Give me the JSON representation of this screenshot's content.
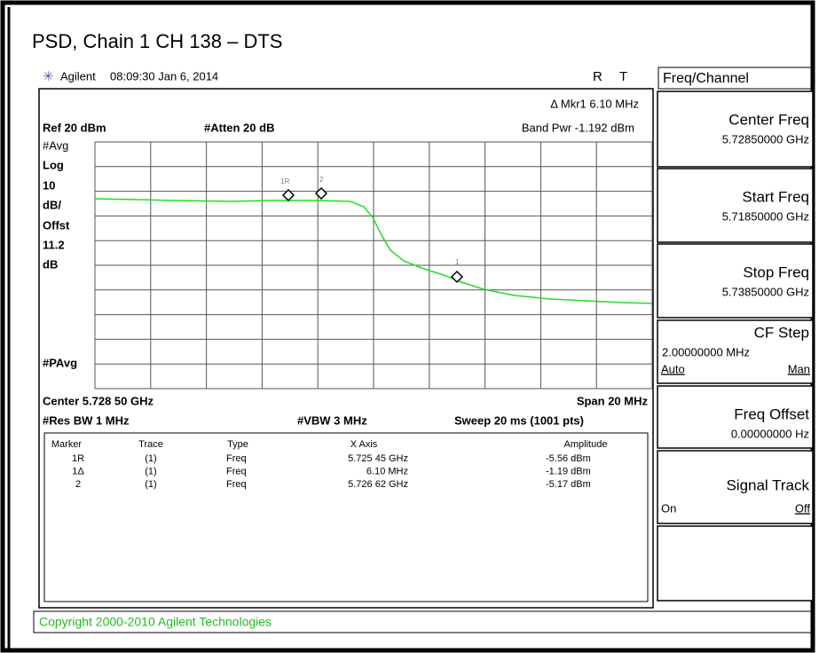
{
  "title": "PSD, Chain 1 CH 138 – DTS",
  "header": {
    "brand": "Agilent",
    "timestamp": "08:09:30 Jan 6, 2014",
    "flags": [
      "R",
      "T"
    ]
  },
  "screen": {
    "marker_readout": "Δ Mkr1  6.10 MHz",
    "ref": "Ref 20 dBm",
    "atten": "#Atten 20 dB",
    "band_power": "Band Pwr  -1.192 dBm",
    "left_labels": [
      "#Avg",
      "Log",
      "10",
      "dB/",
      "Offst",
      "11.2",
      "dB",
      "#PAvg"
    ],
    "plot_markers": [
      "1R",
      "2",
      "1"
    ],
    "center": "Center 5.728 50 GHz",
    "span": "Span 20 MHz",
    "res_bw": "#Res BW 1 MHz",
    "vbw": "#VBW 3 MHz",
    "sweep": "Sweep 20 ms (1001 pts)"
  },
  "marker_table": {
    "columns": [
      "Marker",
      "Trace",
      "Type",
      "X Axis",
      "Amplitude"
    ],
    "rows": [
      [
        "1R",
        "(1)",
        "Freq",
        "5.725 45 GHz",
        "-5.56 dBm"
      ],
      [
        "1Δ",
        "(1)",
        "Freq",
        "6.10 MHz",
        "-1.19 dBm"
      ],
      [
        "2",
        "(1)",
        "Freq",
        "5.726 62 GHz",
        "-5.17 dBm"
      ]
    ]
  },
  "menu": {
    "title": "Freq/Channel",
    "keys": [
      {
        "label": "Center Freq",
        "value": "5.72850000 GHz"
      },
      {
        "label": "Start Freq",
        "value": "5.71850000 GHz"
      },
      {
        "label": "Stop Freq",
        "value": "5.73850000 GHz"
      },
      {
        "label": "CF Step",
        "value": "2.00000000 MHz",
        "options": [
          "Auto",
          "Man"
        ]
      },
      {
        "label": "Freq Offset",
        "value": "0.00000000  Hz"
      },
      {
        "label": "Signal Track",
        "options": [
          "On",
          "Off"
        ]
      }
    ]
  },
  "copyright": "Copyright 2000-2010 Agilent Technologies"
}
